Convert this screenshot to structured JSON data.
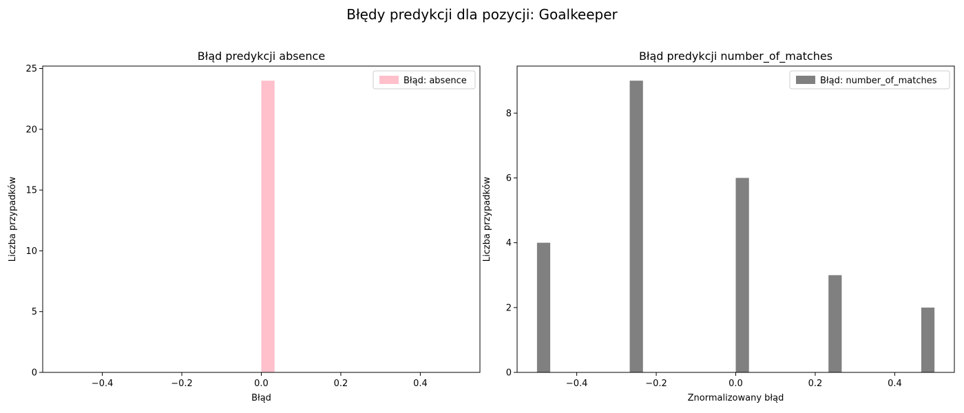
{
  "suptitle": "Błędy predykcji dla pozycji: Goalkeeper",
  "chart_data": [
    {
      "type": "bar",
      "title": "Błąd predykcji absence",
      "xlabel": "Błąd",
      "ylabel": "Liczba przypadków",
      "xlim": [
        -0.55,
        0.55
      ],
      "ylim": [
        0,
        25.2
      ],
      "xticks": [
        -0.4,
        -0.2,
        0.0,
        0.2,
        0.4
      ],
      "xtick_labels": [
        "−0.4",
        "−0.2",
        "0.0",
        "0.2",
        "0.4"
      ],
      "yticks": [
        0,
        5,
        10,
        15,
        20,
        25
      ],
      "ytick_labels": [
        "0",
        "5",
        "10",
        "15",
        "20",
        "25"
      ],
      "bin_width": 0.0333,
      "bars": [
        {
          "x": 0.0,
          "value": 24
        }
      ],
      "legend": {
        "label": "Błąd: absence",
        "position": "top-right"
      },
      "color": "#ffc0cb",
      "grid": false
    },
    {
      "type": "bar",
      "title": "Błąd predykcji number_of_matches",
      "xlabel": "Znormalizowany błąd",
      "ylabel": "Liczba przypadków",
      "xlim": [
        -0.55,
        0.55
      ],
      "ylim": [
        0,
        9.45
      ],
      "xticks": [
        -0.4,
        -0.2,
        0.0,
        0.2,
        0.4
      ],
      "xtick_labels": [
        "−0.4",
        "−0.2",
        "0.0",
        "0.2",
        "0.4"
      ],
      "yticks": [
        0,
        2,
        4,
        6,
        8
      ],
      "ytick_labels": [
        "0",
        "2",
        "4",
        "6",
        "8"
      ],
      "bin_width": 0.0333,
      "bars": [
        {
          "x": -0.5,
          "value": 4
        },
        {
          "x": -0.2667,
          "value": 9
        },
        {
          "x": 0.0,
          "value": 6
        },
        {
          "x": 0.2333,
          "value": 3
        },
        {
          "x": 0.4667,
          "value": 2
        }
      ],
      "legend": {
        "label": "Błąd: number_of_matches",
        "position": "top-right"
      },
      "color": "#808080",
      "grid": false
    }
  ]
}
